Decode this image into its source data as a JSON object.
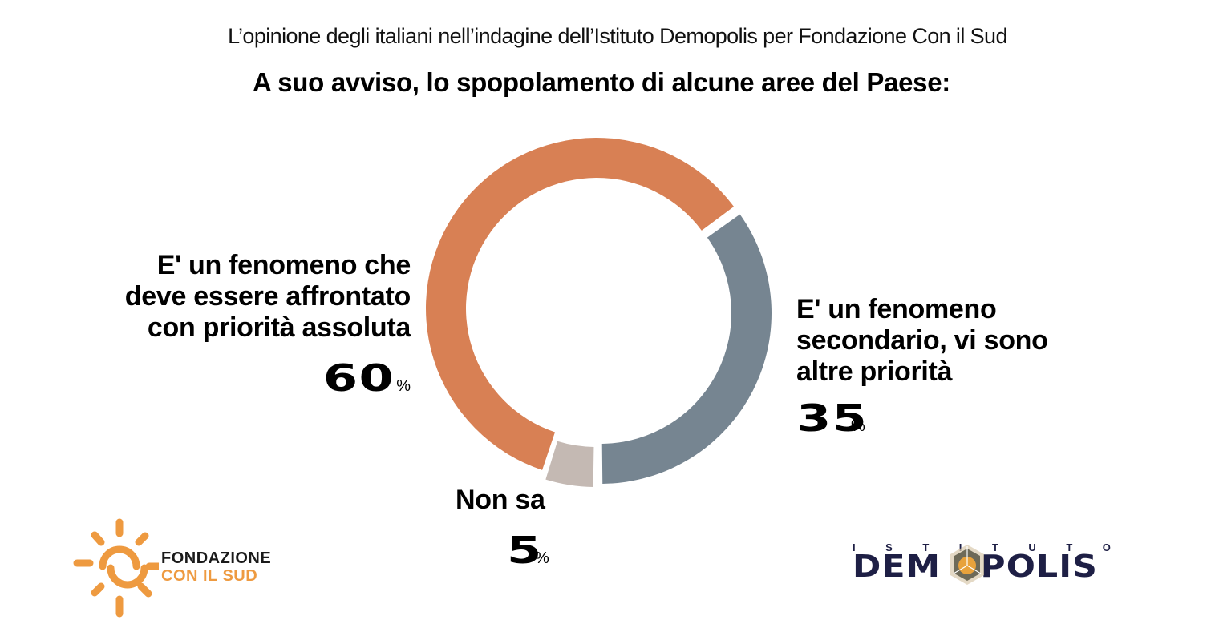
{
  "header": {
    "subtitle": "L’opinione degli italiani nell’indagine dell’Istituto Demopolis per Fondazione Con il Sud",
    "title": "A suo avviso, lo spopolamento di alcune aree del Paese:"
  },
  "chart_data": {
    "type": "pie",
    "variant": "donut",
    "title": "A suo avviso, lo spopolamento di alcune aree del Paese:",
    "subtitle": "L’opinione degli italiani nell’indagine dell’Istituto Demopolis per Fondazione Con il Sud",
    "unit": "%",
    "slices": [
      {
        "label": "E' un fenomeno secondario, vi sono altre priorità",
        "value": 35,
        "color": "#768591",
        "label_position": "right"
      },
      {
        "label": "Non sa",
        "value": 5,
        "color": "#c4b9b3",
        "label_position": "bottom"
      },
      {
        "label": "E' un fenomeno che deve essere affrontato con priorità assoluta",
        "value": 60,
        "color": "#d88054",
        "label_position": "left"
      }
    ]
  },
  "labels": {
    "left": {
      "lines": [
        "E' un fenomeno che",
        "deve essere affrontato",
        "con priorità assoluta"
      ],
      "value": "60",
      "unit": "%"
    },
    "right": {
      "lines": [
        "E' un fenomeno",
        "secondario, vi sono",
        "altre priorità"
      ],
      "value": "35",
      "unit": "%"
    },
    "bottom": {
      "lines": [
        "Non sa"
      ],
      "value": "5",
      "unit": "%"
    }
  },
  "logos": {
    "fondazione": {
      "line1": "FONDAZIONE",
      "line2": "CON IL SUD",
      "color": "#ee9a40",
      "icon": "sun-icon"
    },
    "demopolis": {
      "top_letters": [
        "I",
        "S",
        "T",
        "I",
        "T",
        "U",
        "T",
        "O"
      ],
      "word_before": "DEM",
      "word_after": "POLIS",
      "color": "#1e1f45",
      "icon": "hexagon-emblem-icon"
    }
  }
}
